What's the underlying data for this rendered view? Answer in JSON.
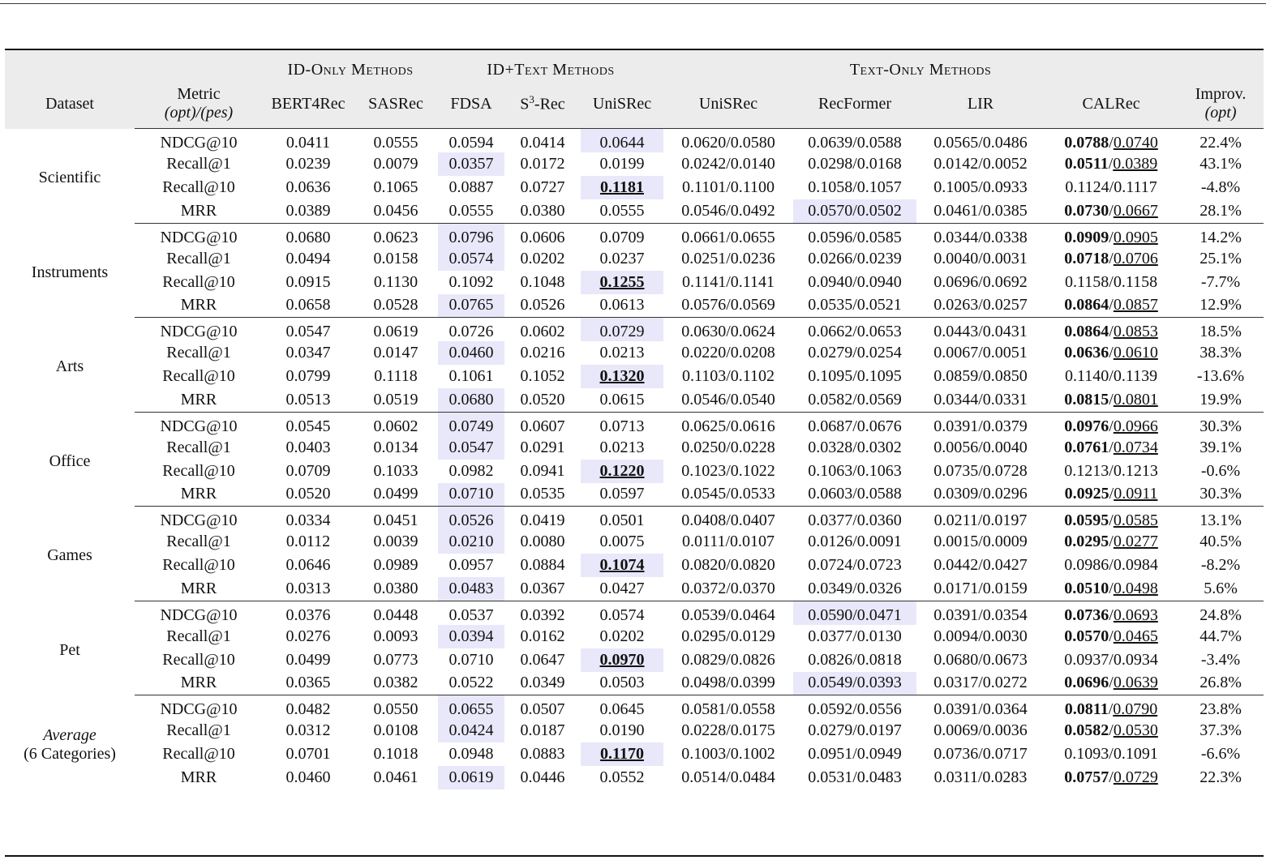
{
  "header": {
    "groups": {
      "id_only": "ID-Only Methods",
      "id_text": "ID+Text Methods",
      "text_only": "Text-Only Methods"
    },
    "columns": {
      "dataset": "Dataset",
      "metric_line1": "Metric",
      "metric_line2": "(opt)/(pes)",
      "bert4rec": "BERT4Rec",
      "sasrec": "SASRec",
      "fdsa": "FDSA",
      "s3rec_base": "S",
      "s3rec_sup": "3",
      "s3rec_rest": "-Rec",
      "unisrec_id": "UniSRec",
      "unisrec_text": "UniSRec",
      "recformer": "RecFormer",
      "lir": "LIR",
      "calrec": "CALRec",
      "improv_line1": "Improv.",
      "improv_line2": "(opt)"
    }
  },
  "datasets": [
    {
      "name": "Scientific",
      "rows": [
        {
          "metric": "NDCG@10",
          "bert4rec": "0.0411",
          "sasrec": "0.0555",
          "fdsa": "0.0594",
          "s3rec": "0.0414",
          "unisrec_id": "0.0644",
          "unisrec_text": "0.0620/0.0580",
          "recformer": "0.0639/0.0588",
          "lir": "0.0565/0.0486",
          "calrec_opt": "0.0788",
          "calrec_pes": "0.0740",
          "improv": "22.4%"
        },
        {
          "metric": "Recall@1",
          "bert4rec": "0.0239",
          "sasrec": "0.0079",
          "fdsa": "0.0357",
          "s3rec": "0.0172",
          "unisrec_id": "0.0199",
          "unisrec_text": "0.0242/0.0140",
          "recformer": "0.0298/0.0168",
          "lir": "0.0142/0.0052",
          "calrec_opt": "0.0511",
          "calrec_pes": "0.0389",
          "improv": "43.1%"
        },
        {
          "metric": "Recall@10",
          "bert4rec": "0.0636",
          "sasrec": "0.1065",
          "fdsa": "0.0887",
          "s3rec": "0.0727",
          "unisrec_id": "0.1181",
          "unisrec_text": "0.1101/0.1100",
          "recformer": "0.1058/0.1057",
          "lir": "0.1005/0.0933",
          "calrec_opt": "0.1124",
          "calrec_pes": "0.1117",
          "improv": "-4.8%"
        },
        {
          "metric": "MRR",
          "bert4rec": "0.0389",
          "sasrec": "0.0456",
          "fdsa": "0.0555",
          "s3rec": "0.0380",
          "unisrec_id": "0.0555",
          "unisrec_text": "0.0546/0.0492",
          "recformer": "0.0570/0.0502",
          "lir": "0.0461/0.0385",
          "calrec_opt": "0.0730",
          "calrec_pes": "0.0667",
          "improv": "28.1%"
        }
      ]
    },
    {
      "name": "Instruments",
      "rows": [
        {
          "metric": "NDCG@10",
          "bert4rec": "0.0680",
          "sasrec": "0.0623",
          "fdsa": "0.0796",
          "s3rec": "0.0606",
          "unisrec_id": "0.0709",
          "unisrec_text": "0.0661/0.0655",
          "recformer": "0.0596/0.0585",
          "lir": "0.0344/0.0338",
          "calrec_opt": "0.0909",
          "calrec_pes": "0.0905",
          "improv": "14.2%"
        },
        {
          "metric": "Recall@1",
          "bert4rec": "0.0494",
          "sasrec": "0.0158",
          "fdsa": "0.0574",
          "s3rec": "0.0202",
          "unisrec_id": "0.0237",
          "unisrec_text": "0.0251/0.0236",
          "recformer": "0.0266/0.0239",
          "lir": "0.0040/0.0031",
          "calrec_opt": "0.0718",
          "calrec_pes": "0.0706",
          "improv": "25.1%"
        },
        {
          "metric": "Recall@10",
          "bert4rec": "0.0915",
          "sasrec": "0.1130",
          "fdsa": "0.1092",
          "s3rec": "0.1048",
          "unisrec_id": "0.1255",
          "unisrec_text": "0.1141/0.1141",
          "recformer": "0.0940/0.0940",
          "lir": "0.0696/0.0692",
          "calrec_opt": "0.1158",
          "calrec_pes": "0.1158",
          "improv": "-7.7%"
        },
        {
          "metric": "MRR",
          "bert4rec": "0.0658",
          "sasrec": "0.0528",
          "fdsa": "0.0765",
          "s3rec": "0.0526",
          "unisrec_id": "0.0613",
          "unisrec_text": "0.0576/0.0569",
          "recformer": "0.0535/0.0521",
          "lir": "0.0263/0.0257",
          "calrec_opt": "0.0864",
          "calrec_pes": "0.0857",
          "improv": "12.9%"
        }
      ]
    },
    {
      "name": "Arts",
      "rows": [
        {
          "metric": "NDCG@10",
          "bert4rec": "0.0547",
          "sasrec": "0.0619",
          "fdsa": "0.0726",
          "s3rec": "0.0602",
          "unisrec_id": "0.0729",
          "unisrec_text": "0.0630/0.0624",
          "recformer": "0.0662/0.0653",
          "lir": "0.0443/0.0431",
          "calrec_opt": "0.0864",
          "calrec_pes": "0.0853",
          "improv": "18.5%"
        },
        {
          "metric": "Recall@1",
          "bert4rec": "0.0347",
          "sasrec": "0.0147",
          "fdsa": "0.0460",
          "s3rec": "0.0216",
          "unisrec_id": "0.0213",
          "unisrec_text": "0.0220/0.0208",
          "recformer": "0.0279/0.0254",
          "lir": "0.0067/0.0051",
          "calrec_opt": "0.0636",
          "calrec_pes": "0.0610",
          "improv": "38.3%"
        },
        {
          "metric": "Recall@10",
          "bert4rec": "0.0799",
          "sasrec": "0.1118",
          "fdsa": "0.1061",
          "s3rec": "0.1052",
          "unisrec_id": "0.1320",
          "unisrec_text": "0.1103/0.1102",
          "recformer": "0.1095/0.1095",
          "lir": "0.0859/0.0850",
          "calrec_opt": "0.1140",
          "calrec_pes": "0.1139",
          "improv": "-13.6%"
        },
        {
          "metric": "MRR",
          "bert4rec": "0.0513",
          "sasrec": "0.0519",
          "fdsa": "0.0680",
          "s3rec": "0.0520",
          "unisrec_id": "0.0615",
          "unisrec_text": "0.0546/0.0540",
          "recformer": "0.0582/0.0569",
          "lir": "0.0344/0.0331",
          "calrec_opt": "0.0815",
          "calrec_pes": "0.0801",
          "improv": "19.9%"
        }
      ]
    },
    {
      "name": "Office",
      "rows": [
        {
          "metric": "NDCG@10",
          "bert4rec": "0.0545",
          "sasrec": "0.0602",
          "fdsa": "0.0749",
          "s3rec": "0.0607",
          "unisrec_id": "0.0713",
          "unisrec_text": "0.0625/0.0616",
          "recformer": "0.0687/0.0676",
          "lir": "0.0391/0.0379",
          "calrec_opt": "0.0976",
          "calrec_pes": "0.0966",
          "improv": "30.3%"
        },
        {
          "metric": "Recall@1",
          "bert4rec": "0.0403",
          "sasrec": "0.0134",
          "fdsa": "0.0547",
          "s3rec": "0.0291",
          "unisrec_id": "0.0213",
          "unisrec_text": "0.0250/0.0228",
          "recformer": "0.0328/0.0302",
          "lir": "0.0056/0.0040",
          "calrec_opt": "0.0761",
          "calrec_pes": "0.0734",
          "improv": "39.1%"
        },
        {
          "metric": "Recall@10",
          "bert4rec": "0.0709",
          "sasrec": "0.1033",
          "fdsa": "0.0982",
          "s3rec": "0.0941",
          "unisrec_id": "0.1220",
          "unisrec_text": "0.1023/0.1022",
          "recformer": "0.1063/0.1063",
          "lir": "0.0735/0.0728",
          "calrec_opt": "0.1213",
          "calrec_pes": "0.1213",
          "improv": "-0.6%"
        },
        {
          "metric": "MRR",
          "bert4rec": "0.0520",
          "sasrec": "0.0499",
          "fdsa": "0.0710",
          "s3rec": "0.0535",
          "unisrec_id": "0.0597",
          "unisrec_text": "0.0545/0.0533",
          "recformer": "0.0603/0.0588",
          "lir": "0.0309/0.0296",
          "calrec_opt": "0.0925",
          "calrec_pes": "0.0911",
          "improv": "30.3%"
        }
      ]
    },
    {
      "name": "Games",
      "rows": [
        {
          "metric": "NDCG@10",
          "bert4rec": "0.0334",
          "sasrec": "0.0451",
          "fdsa": "0.0526",
          "s3rec": "0.0419",
          "unisrec_id": "0.0501",
          "unisrec_text": "0.0408/0.0407",
          "recformer": "0.0377/0.0360",
          "lir": "0.0211/0.0197",
          "calrec_opt": "0.0595",
          "calrec_pes": "0.0585",
          "improv": "13.1%"
        },
        {
          "metric": "Recall@1",
          "bert4rec": "0.0112",
          "sasrec": "0.0039",
          "fdsa": "0.0210",
          "s3rec": "0.0080",
          "unisrec_id": "0.0075",
          "unisrec_text": "0.0111/0.0107",
          "recformer": "0.0126/0.0091",
          "lir": "0.0015/0.0009",
          "calrec_opt": "0.0295",
          "calrec_pes": "0.0277",
          "improv": "40.5%"
        },
        {
          "metric": "Recall@10",
          "bert4rec": "0.0646",
          "sasrec": "0.0989",
          "fdsa": "0.0957",
          "s3rec": "0.0884",
          "unisrec_id": "0.1074",
          "unisrec_text": "0.0820/0.0820",
          "recformer": "0.0724/0.0723",
          "lir": "0.0442/0.0427",
          "calrec_opt": "0.0986",
          "calrec_pes": "0.0984",
          "improv": "-8.2%"
        },
        {
          "metric": "MRR",
          "bert4rec": "0.0313",
          "sasrec": "0.0380",
          "fdsa": "0.0483",
          "s3rec": "0.0367",
          "unisrec_id": "0.0427",
          "unisrec_text": "0.0372/0.0370",
          "recformer": "0.0349/0.0326",
          "lir": "0.0171/0.0159",
          "calrec_opt": "0.0510",
          "calrec_pes": "0.0498",
          "improv": "5.6%"
        }
      ]
    },
    {
      "name": "Pet",
      "rows": [
        {
          "metric": "NDCG@10",
          "bert4rec": "0.0376",
          "sasrec": "0.0448",
          "fdsa": "0.0537",
          "s3rec": "0.0392",
          "unisrec_id": "0.0574",
          "unisrec_text": "0.0539/0.0464",
          "recformer": "0.0590/0.0471",
          "lir": "0.0391/0.0354",
          "calrec_opt": "0.0736",
          "calrec_pes": "0.0693",
          "improv": "24.8%"
        },
        {
          "metric": "Recall@1",
          "bert4rec": "0.0276",
          "sasrec": "0.0093",
          "fdsa": "0.0394",
          "s3rec": "0.0162",
          "unisrec_id": "0.0202",
          "unisrec_text": "0.0295/0.0129",
          "recformer": "0.0377/0.0130",
          "lir": "0.0094/0.0030",
          "calrec_opt": "0.0570",
          "calrec_pes": "0.0465",
          "improv": "44.7%"
        },
        {
          "metric": "Recall@10",
          "bert4rec": "0.0499",
          "sasrec": "0.0773",
          "fdsa": "0.0710",
          "s3rec": "0.0647",
          "unisrec_id": "0.0970",
          "unisrec_text": "0.0829/0.0826",
          "recformer": "0.0826/0.0818",
          "lir": "0.0680/0.0673",
          "calrec_opt": "0.0937",
          "calrec_pes": "0.0934",
          "improv": "-3.4%"
        },
        {
          "metric": "MRR",
          "bert4rec": "0.0365",
          "sasrec": "0.0382",
          "fdsa": "0.0522",
          "s3rec": "0.0349",
          "unisrec_id": "0.0503",
          "unisrec_text": "0.0498/0.0399",
          "recformer": "0.0549/0.0393",
          "lir": "0.0317/0.0272",
          "calrec_opt": "0.0696",
          "calrec_pes": "0.0639",
          "improv": "26.8%"
        }
      ]
    },
    {
      "name": "Average",
      "name_line2": "(6 Categories)",
      "rows": [
        {
          "metric": "NDCG@10",
          "bert4rec": "0.0482",
          "sasrec": "0.0550",
          "fdsa": "0.0655",
          "s3rec": "0.0507",
          "unisrec_id": "0.0645",
          "unisrec_text": "0.0581/0.0558",
          "recformer": "0.0592/0.0556",
          "lir": "0.0391/0.0364",
          "calrec_opt": "0.0811",
          "calrec_pes": "0.0790",
          "improv": "23.8%"
        },
        {
          "metric": "Recall@1",
          "bert4rec": "0.0312",
          "sasrec": "0.0108",
          "fdsa": "0.0424",
          "s3rec": "0.0187",
          "unisrec_id": "0.0190",
          "unisrec_text": "0.0228/0.0175",
          "recformer": "0.0279/0.0197",
          "lir": "0.0069/0.0036",
          "calrec_opt": "0.0582",
          "calrec_pes": "0.0530",
          "improv": "37.3%"
        },
        {
          "metric": "Recall@10",
          "bert4rec": "0.0701",
          "sasrec": "0.1018",
          "fdsa": "0.0948",
          "s3rec": "0.0883",
          "unisrec_id": "0.1170",
          "unisrec_text": "0.1003/0.1002",
          "recformer": "0.0951/0.0949",
          "lir": "0.0736/0.0717",
          "calrec_opt": "0.1093",
          "calrec_pes": "0.1091",
          "improv": "-6.6%"
        },
        {
          "metric": "MRR",
          "bert4rec": "0.0460",
          "sasrec": "0.0461",
          "fdsa": "0.0619",
          "s3rec": "0.0446",
          "unisrec_id": "0.0552",
          "unisrec_text": "0.0514/0.0484",
          "recformer": "0.0531/0.0483",
          "lir": "0.0311/0.0283",
          "calrec_opt": "0.0757",
          "calrec_pes": "0.0729",
          "improv": "22.3%"
        }
      ]
    }
  ]
}
